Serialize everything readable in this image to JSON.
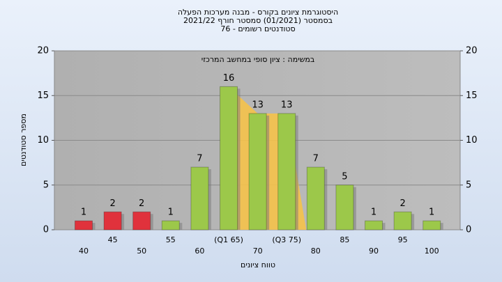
{
  "chart_data": {
    "type": "bar",
    "title": [
      "היסטוגרמת ציונים בקורס - מבנה מערכות הפעלה",
      "בסמסטר  (01/2021)  סמסטר חורף 2021/22",
      "סטודנטים רשומים - 76"
    ],
    "subtitle": "במשימה : ציון סופי במחשב המרכזי",
    "y_label": "מספר סטודנטים",
    "x_label": "טווח ציונים",
    "categories": [
      "40",
      "45",
      "50",
      "55",
      "60",
      "(Q1 65)",
      "70",
      "(Q3 75)",
      "80",
      "85",
      "90",
      "95",
      "100"
    ],
    "values": [
      1,
      2,
      2,
      1,
      7,
      16,
      13,
      13,
      7,
      5,
      1,
      2,
      1
    ],
    "colors": [
      "#e0323c",
      "#e0323c",
      "#e0323c",
      "#9cc84a",
      "#9cc84a",
      "#9cc84a",
      "#9cc84a",
      "#9cc84a",
      "#9cc84a",
      "#9cc84a",
      "#9cc84a",
      "#9cc84a",
      "#9cc84a"
    ],
    "ylim": [
      0,
      20
    ],
    "yticks": [
      0,
      5,
      10,
      15,
      20
    ],
    "y2lim": [
      0,
      20
    ],
    "y2ticks": [
      0,
      5,
      10,
      15,
      20
    ],
    "grid": true
  }
}
